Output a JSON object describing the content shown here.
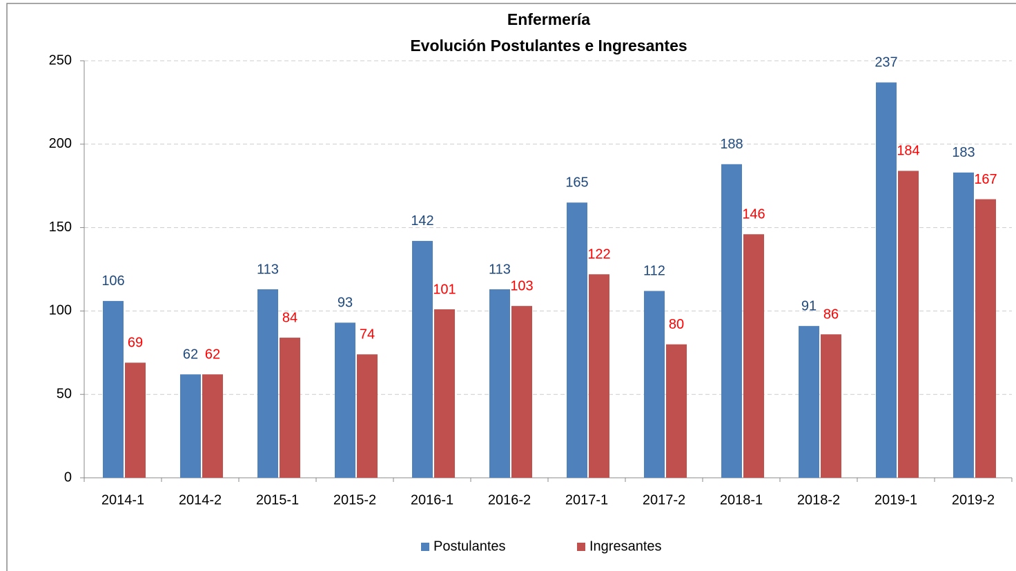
{
  "chart_data": {
    "type": "bar",
    "title": "Enfermería",
    "subtitle": "Evolución Postulantes e Ingresantes",
    "categories": [
      "2014-1",
      "2014-2",
      "2015-1",
      "2015-2",
      "2016-1",
      "2016-2",
      "2017-1",
      "2017-2",
      "2018-1",
      "2018-2",
      "2019-1",
      "2019-2"
    ],
    "series": [
      {
        "name": "Postulantes",
        "color": "#4f81bd",
        "label_color": "#1f497d",
        "values": [
          106,
          62,
          113,
          93,
          142,
          113,
          165,
          112,
          188,
          91,
          237,
          183
        ]
      },
      {
        "name": "Ingresantes",
        "color": "#c0504d",
        "label_color": "#ff0000",
        "values": [
          69,
          62,
          84,
          74,
          101,
          103,
          122,
          80,
          146,
          86,
          184,
          167
        ]
      }
    ],
    "ylim": [
      0,
      250
    ],
    "yticks": [
      0,
      50,
      100,
      150,
      200,
      250
    ],
    "grid": true,
    "legend": "bottom"
  }
}
